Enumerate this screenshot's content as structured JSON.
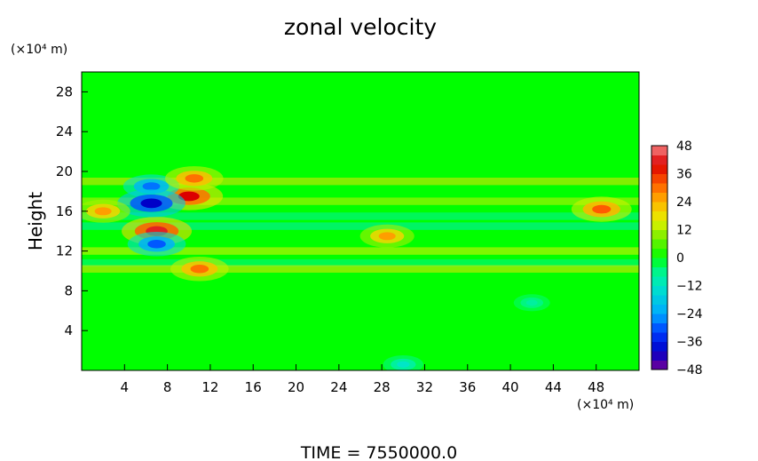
{
  "chart_data": {
    "type": "heatmap",
    "title": "zonal velocity",
    "ylabel": "Height",
    "xlabel": "",
    "x_unit": "(×10⁴ m)",
    "y_unit": "(×10⁴ m)",
    "xlim": [
      0,
      52
    ],
    "ylim": [
      0,
      30
    ],
    "x_ticks": [
      4,
      8,
      12,
      16,
      20,
      24,
      28,
      32,
      36,
      40,
      44,
      48
    ],
    "y_ticks": [
      4,
      8,
      12,
      16,
      20,
      24,
      28
    ],
    "colorbar": {
      "min": -48,
      "max": 48,
      "tick_labels": [
        48,
        36,
        24,
        12,
        0,
        -12,
        -24,
        -36,
        -48
      ],
      "placement": "right"
    },
    "field_background": 0,
    "features": [
      {
        "x": 10,
        "y": 17.5,
        "value": 40
      },
      {
        "x": 7,
        "y": 14,
        "value": 42
      },
      {
        "x": 6.5,
        "y": 18.5,
        "value": -28
      },
      {
        "x": 6.5,
        "y": 16.8,
        "value": -40
      },
      {
        "x": 7,
        "y": 12.7,
        "value": -30
      },
      {
        "x": 10.5,
        "y": 19.3,
        "value": 30
      },
      {
        "x": 2,
        "y": 16,
        "value": 26
      },
      {
        "x": 48.5,
        "y": 16.2,
        "value": 32
      },
      {
        "x": 28.5,
        "y": 13.5,
        "value": 26
      },
      {
        "x": 11,
        "y": 10.2,
        "value": 30
      },
      {
        "x": 30,
        "y": 0.6,
        "value": -12
      },
      {
        "x": 42,
        "y": 6.8,
        "value": -8
      }
    ],
    "bands": [
      {
        "y": 19.0,
        "value": 18
      },
      {
        "y": 17.0,
        "value": 14
      },
      {
        "y": 15.5,
        "value": -8
      },
      {
        "y": 14.5,
        "value": -10
      },
      {
        "y": 12.0,
        "value": 16
      },
      {
        "y": 10.8,
        "value": -6
      },
      {
        "y": 10.2,
        "value": 18
      }
    ]
  },
  "footer": {
    "time_label": "TIME  =  7550000.0"
  }
}
